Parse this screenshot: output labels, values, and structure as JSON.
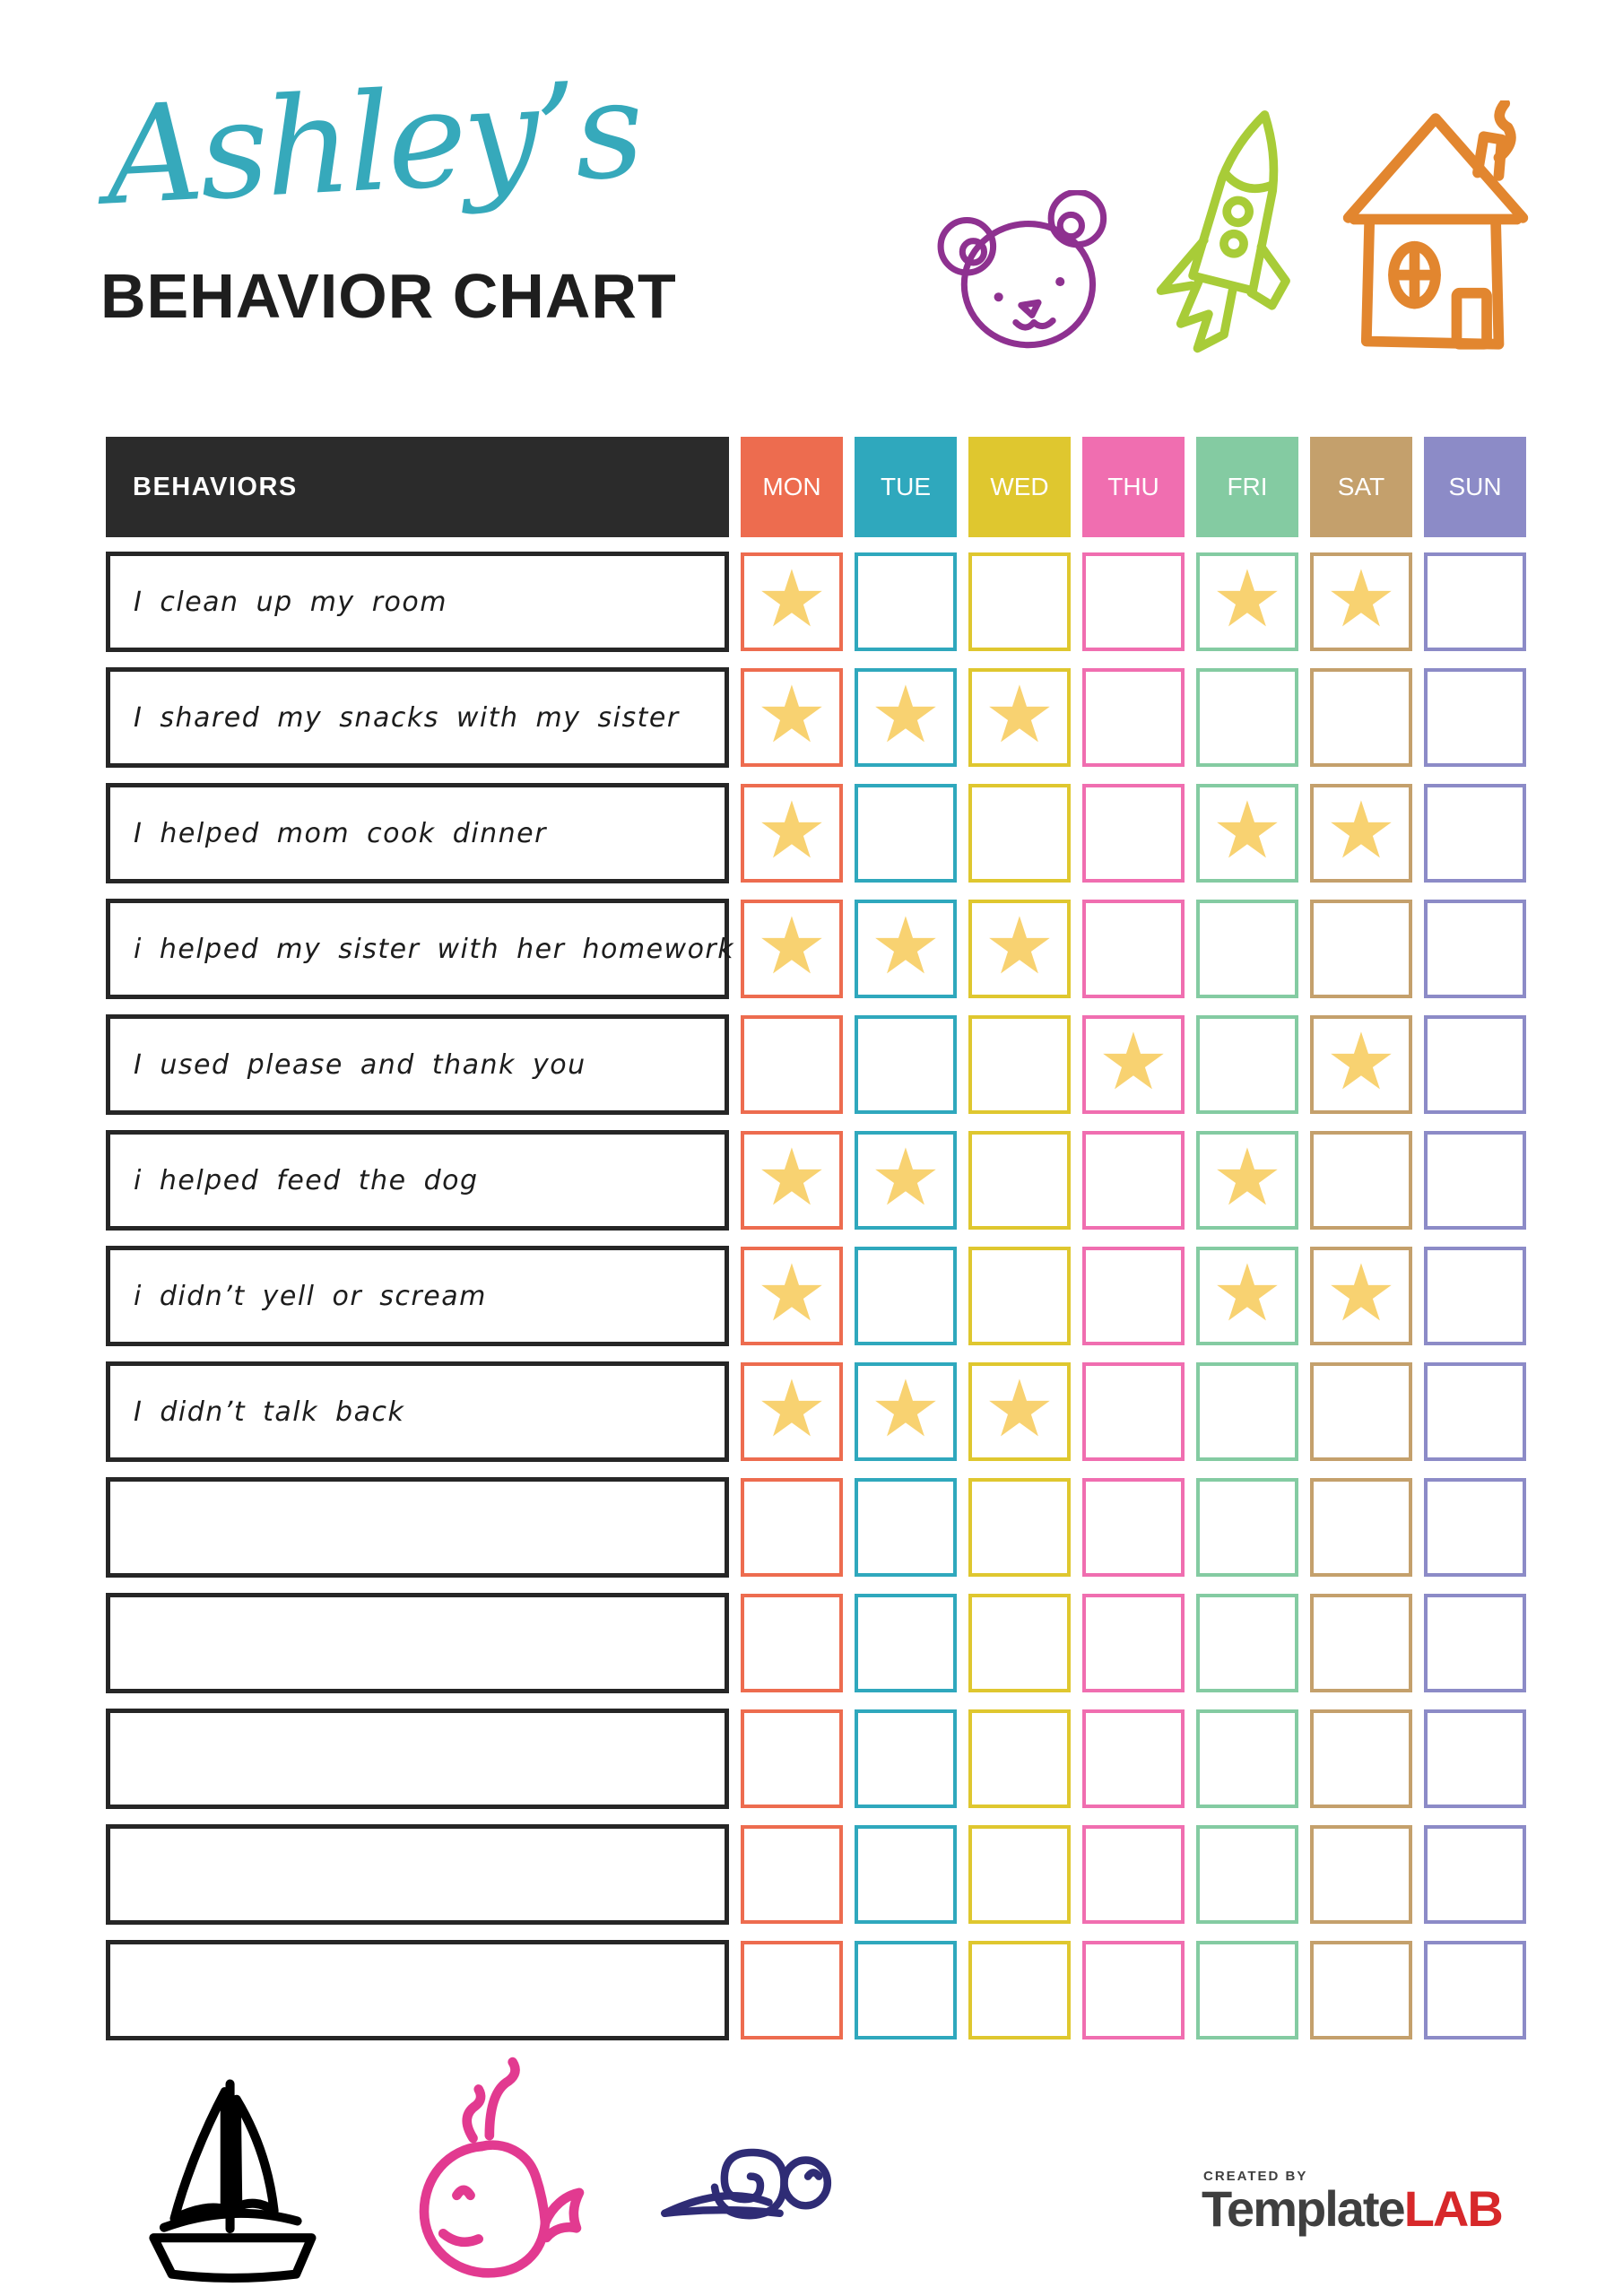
{
  "header": {
    "title_script": "Ashley’s",
    "title_script_color": "#36A9BB",
    "title_main": "BEHAVIOR CHART",
    "title_main_color": "#1E1E1E",
    "icons": [
      {
        "name": "bear",
        "color": "#8E3190"
      },
      {
        "name": "rocket",
        "color": "#A8CC38"
      },
      {
        "name": "house",
        "color": "#E2862F"
      }
    ]
  },
  "table": {
    "behaviors_header": "BEHAVIORS",
    "behaviors_header_bg": "#2B2B2B",
    "star_color": "#F8D271",
    "star_glyph": "★",
    "days": [
      {
        "label": "MON",
        "color": "#ED6C4F"
      },
      {
        "label": "TUE",
        "color": "#2FA8BD"
      },
      {
        "label": "WED",
        "color": "#DFC72F"
      },
      {
        "label": "THU",
        "color": "#F06EB0"
      },
      {
        "label": "FRI",
        "color": "#84CBA2"
      },
      {
        "label": "SAT",
        "color": "#C4A06C"
      },
      {
        "label": "SUN",
        "color": "#8C8BC7"
      }
    ],
    "rows": [
      {
        "label": "I clean up my room",
        "stars": [
          1,
          0,
          0,
          0,
          1,
          1,
          0
        ]
      },
      {
        "label": "I shared my snacks with my sister",
        "stars": [
          1,
          1,
          1,
          0,
          0,
          0,
          0
        ]
      },
      {
        "label": "I helped mom cook dinner",
        "stars": [
          1,
          0,
          0,
          0,
          1,
          1,
          0
        ]
      },
      {
        "label": "i helped my sister with her homework",
        "stars": [
          1,
          1,
          1,
          0,
          0,
          0,
          0
        ]
      },
      {
        "label": "I used please and thank you",
        "stars": [
          0,
          0,
          0,
          1,
          0,
          1,
          0
        ]
      },
      {
        "label": "i helped feed the dog",
        "stars": [
          1,
          1,
          0,
          0,
          1,
          0,
          0
        ]
      },
      {
        "label": "i didn’t yell or scream",
        "stars": [
          1,
          0,
          0,
          0,
          1,
          1,
          0
        ]
      },
      {
        "label": "I didn’t talk back",
        "stars": [
          1,
          1,
          1,
          0,
          0,
          0,
          0
        ]
      },
      {
        "label": "",
        "stars": [
          0,
          0,
          0,
          0,
          0,
          0,
          0
        ]
      },
      {
        "label": "",
        "stars": [
          0,
          0,
          0,
          0,
          0,
          0,
          0
        ]
      },
      {
        "label": "",
        "stars": [
          0,
          0,
          0,
          0,
          0,
          0,
          0
        ]
      },
      {
        "label": "",
        "stars": [
          0,
          0,
          0,
          0,
          0,
          0,
          0
        ]
      },
      {
        "label": "",
        "stars": [
          0,
          0,
          0,
          0,
          0,
          0,
          0
        ]
      }
    ]
  },
  "footer": {
    "doodles": [
      {
        "name": "boat",
        "color": "#2E9DC8"
      },
      {
        "name": "whale",
        "color": "#E23A90"
      },
      {
        "name": "snail",
        "color": "#2F2C75"
      }
    ],
    "logo": {
      "created_by": "CREATED BY",
      "brand_primary": "Template",
      "brand_accent": "LAB",
      "primary_color": "#3F3F3F",
      "accent_color": "#D7282A"
    }
  }
}
